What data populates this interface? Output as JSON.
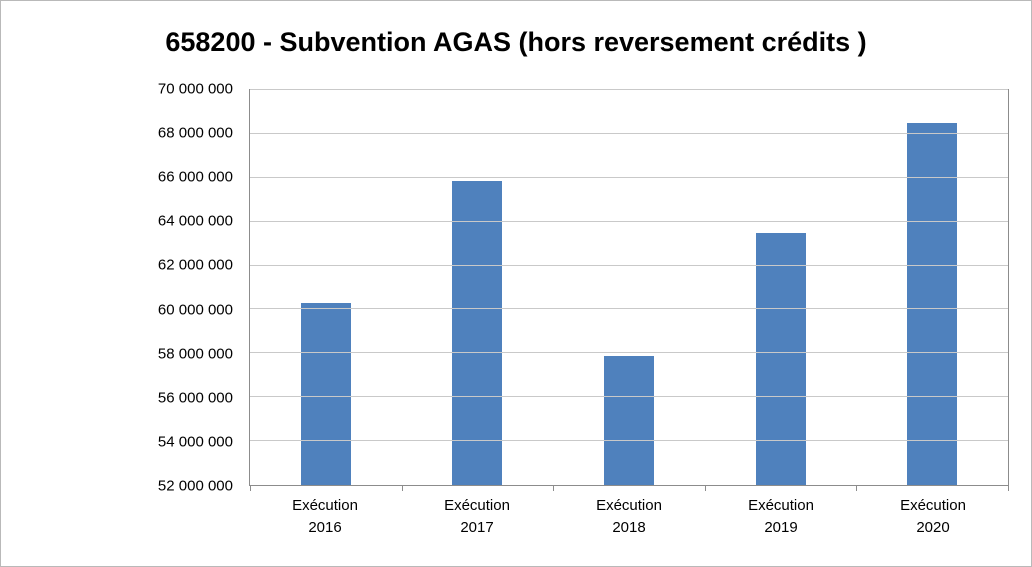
{
  "chart_data": {
    "type": "bar",
    "title": "658200 - Subvention AGAS (hors reversement crédits )",
    "categories": [
      [
        "Exécution",
        "2016"
      ],
      [
        "Exécution",
        "2017"
      ],
      [
        "Exécution",
        "2018"
      ],
      [
        "Exécution",
        "2019"
      ],
      [
        "Exécution",
        "2020"
      ]
    ],
    "values": [
      60300000,
      65850000,
      57900000,
      63500000,
      68500000
    ],
    "ylim": [
      52000000,
      70000000
    ],
    "ytick_step": 2000000,
    "ytick_labels": [
      "52 000 000",
      "54 000 000",
      "56 000 000",
      "58 000 000",
      "60 000 000",
      "62 000 000",
      "64 000 000",
      "66 000 000",
      "68 000 000",
      "70 000 000"
    ],
    "xlabel": "",
    "ylabel": "",
    "legend": "none",
    "grid": true,
    "bar_color": "#4F81BD",
    "gridline_color": "#c9c9c9",
    "axis_color": "#8c8c8c"
  }
}
